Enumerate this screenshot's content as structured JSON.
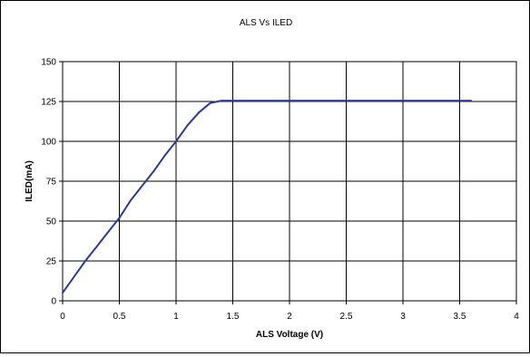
{
  "chart_data": {
    "type": "line",
    "title": "ALS Vs ILED",
    "xlabel": "ALS Voltage (V)",
    "ylabel": "ILED(mA)",
    "xlim": [
      0,
      4
    ],
    "ylim": [
      0,
      150
    ],
    "x_ticks": [
      "0",
      "0.5",
      "1",
      "1.5",
      "2",
      "2.5",
      "3",
      "3.5",
      "4"
    ],
    "y_ticks": [
      "0",
      "25",
      "50",
      "75",
      "100",
      "125",
      "150"
    ],
    "grid": true,
    "legend": "none",
    "series": [
      {
        "color": "#2e3a8c",
        "x": [
          0,
          0.1,
          0.2,
          0.3,
          0.4,
          0.5,
          0.6,
          0.7,
          0.8,
          0.9,
          1.0,
          1.1,
          1.2,
          1.3,
          1.4,
          1.5,
          2.0,
          2.5,
          3.0,
          3.6
        ],
        "y": [
          5,
          15,
          25,
          34,
          43,
          52,
          63,
          72,
          81,
          91,
          100,
          110,
          118,
          124,
          125.5,
          125.5,
          125.5,
          125.5,
          125.5,
          125.5
        ]
      }
    ]
  }
}
